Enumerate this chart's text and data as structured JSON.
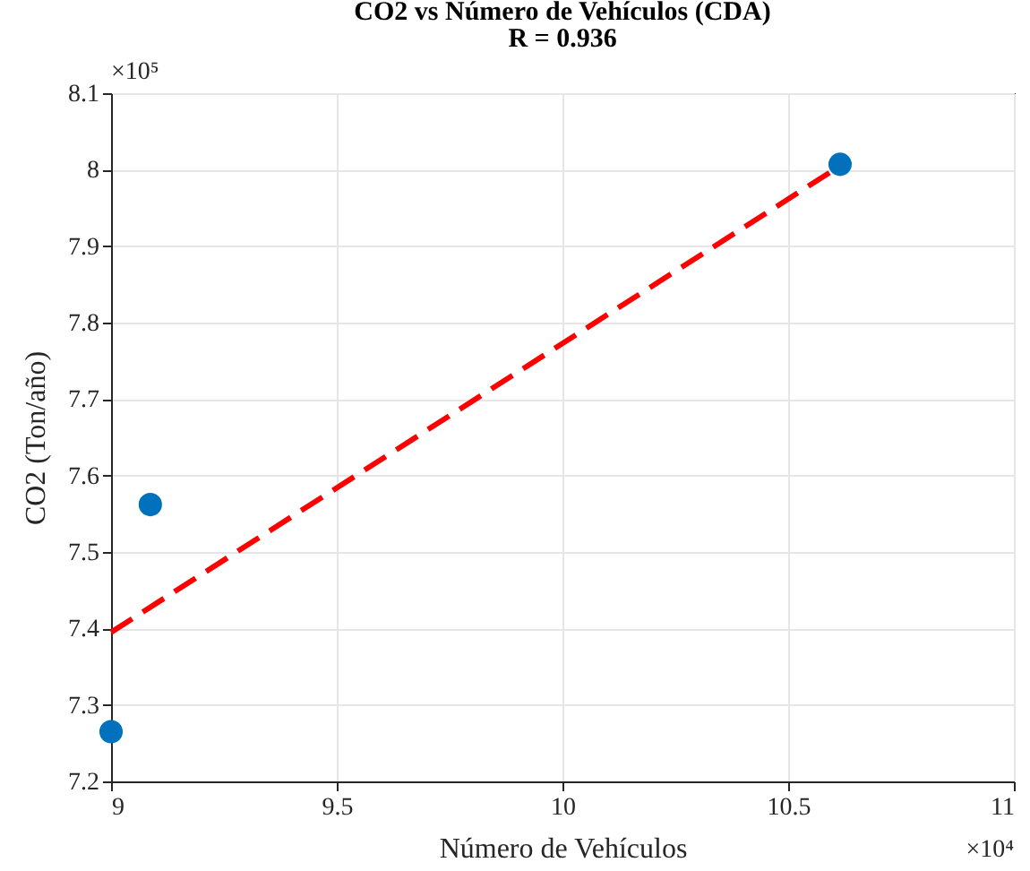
{
  "chart_data": {
    "type": "scatter",
    "title": "CO2 vs Número de Vehículos (CDA)",
    "subtitle": "R = 0.936",
    "xlabel": "Número de Vehículos",
    "ylabel": "CO2 (Ton/año)",
    "x": [
      9.0,
      9.087,
      10.615
    ],
    "series": [
      {
        "color": "#0072bd",
        "marker": "circle",
        "values": [
          7.265,
          7.562,
          8.007
        ]
      },
      {
        "type": "line",
        "color": "#ff0000",
        "line_style": "dashed",
        "marker": "none",
        "x": [
          9.0,
          10.615
        ],
        "values": [
          7.395,
          8.005
        ]
      }
    ],
    "xlim": [
      9,
      11
    ],
    "xticks": [
      9,
      9.5,
      10,
      10.5,
      11
    ],
    "ylim": [
      7.2,
      8.1
    ],
    "yticks": [
      7.2,
      7.3,
      7.4,
      7.5,
      7.6,
      7.7,
      7.8,
      7.9,
      8,
      8.1
    ],
    "grid": true,
    "annotations": [
      "×10⁴",
      "×10⁵"
    ]
  }
}
